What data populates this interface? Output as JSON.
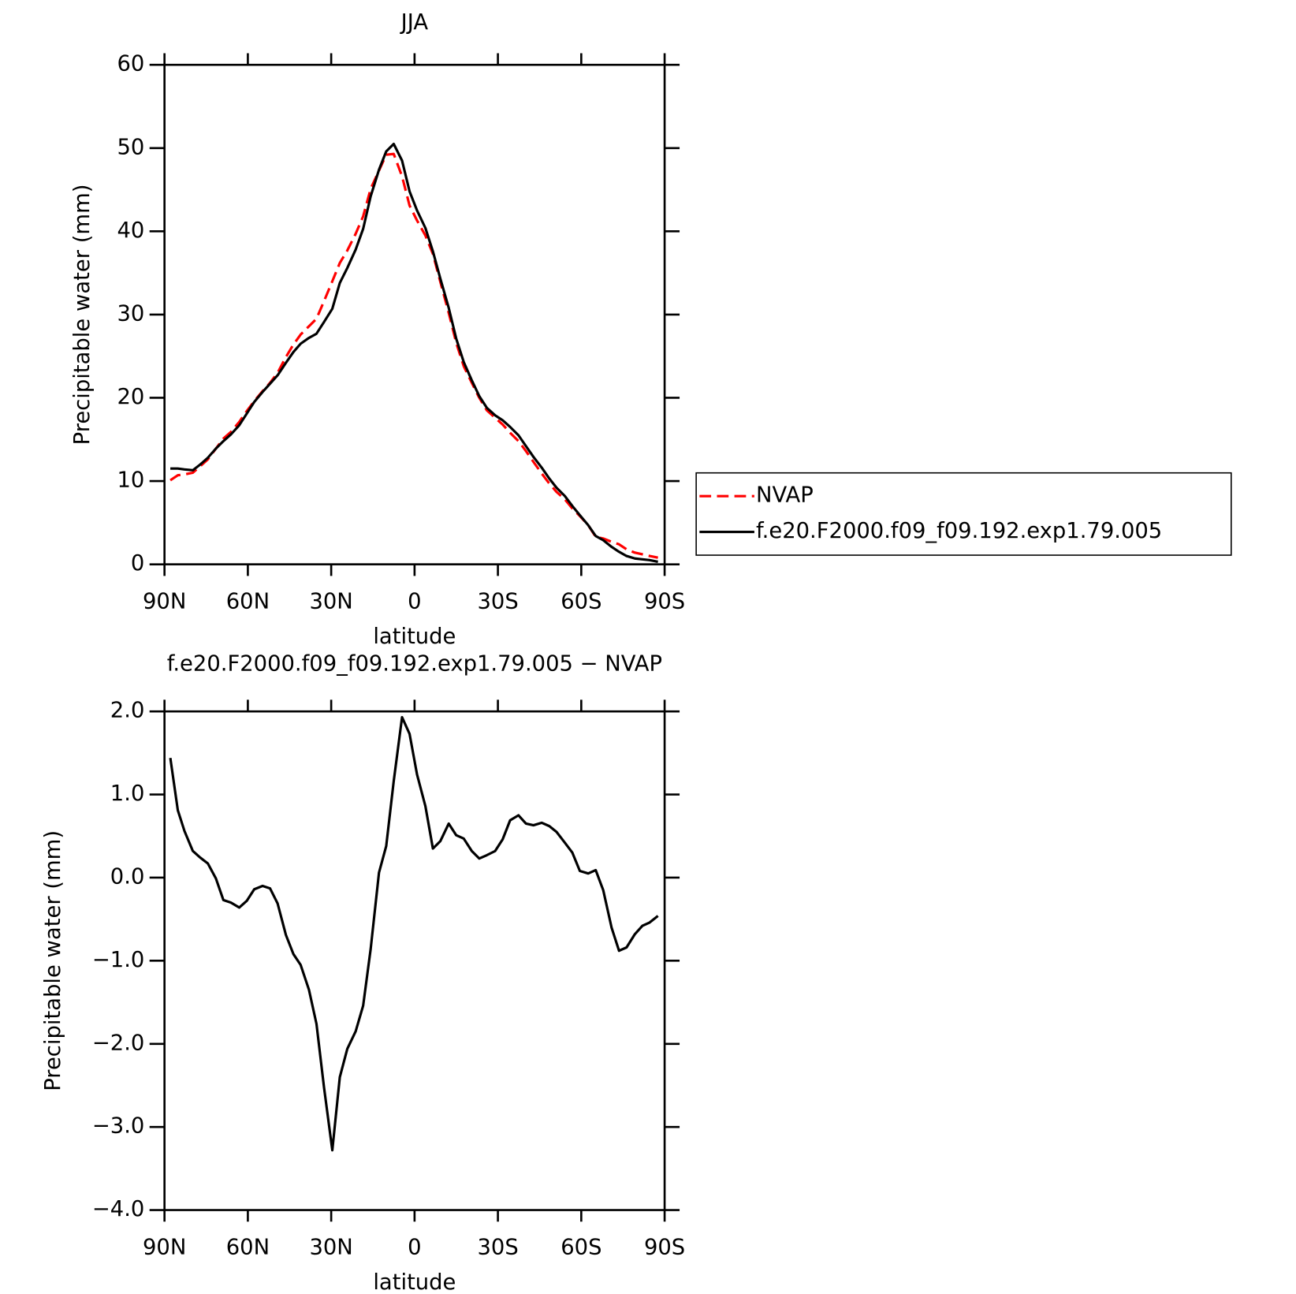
{
  "chart_data": [
    {
      "type": "line",
      "title": "JJA",
      "xlabel": "latitude",
      "ylabel": "Precipitable water (mm)",
      "x": [
        87.9,
        85.2,
        82.8,
        79.8,
        77.1,
        74.4,
        71.5,
        68.8,
        66.1,
        63.1,
        60.4,
        57.7,
        54.7,
        52.0,
        49.3,
        46.3,
        43.6,
        41.0,
        38.0,
        35.3,
        32.6,
        29.6,
        26.9,
        24.2,
        21.2,
        18.5,
        15.8,
        12.8,
        10.2,
        7.5,
        4.5,
        1.8,
        -0.9,
        -3.9,
        -6.6,
        -9.3,
        -12.3,
        -15.0,
        -17.7,
        -20.6,
        -23.3,
        -26.0,
        -29.0,
        -31.7,
        -34.4,
        -37.4,
        -40.1,
        -42.8,
        -45.8,
        -48.5,
        -51.1,
        -54.1,
        -56.8,
        -59.5,
        -62.5,
        -65.2,
        -67.9,
        -70.9,
        -73.6,
        -76.3,
        -79.3,
        -82.0,
        -84.6,
        -87.6
      ],
      "series": [
        {
          "name": "NVAP",
          "color": "#ff0000",
          "style": "dashed",
          "values": [
            10.1,
            10.7,
            10.8,
            11.0,
            11.8,
            12.6,
            13.9,
            15.1,
            15.9,
            17.1,
            18.4,
            19.6,
            20.8,
            21.8,
            23.0,
            24.9,
            26.4,
            27.6,
            28.6,
            29.5,
            31.6,
            34.0,
            36.2,
            37.7,
            39.7,
            41.8,
            45.1,
            47.3,
            49.2,
            49.3,
            46.6,
            43.1,
            41.3,
            39.5,
            37.3,
            33.9,
            30.2,
            26.6,
            23.8,
            21.8,
            20.0,
            18.5,
            17.6,
            16.8,
            15.8,
            14.8,
            13.6,
            12.3,
            10.9,
            9.7,
            8.7,
            7.8,
            6.7,
            5.8,
            4.7,
            3.3,
            3.1,
            2.7,
            2.4,
            1.8,
            1.4,
            1.2,
            1.0,
            0.8
          ]
        },
        {
          "name": "f.e20.F2000.f09_f09.192.exp1.79.005",
          "color": "#000000",
          "style": "solid",
          "values": [
            11.5,
            11.5,
            11.4,
            11.3,
            12.0,
            12.8,
            13.9,
            14.8,
            15.6,
            16.7,
            18.1,
            19.5,
            20.7,
            21.7,
            22.7,
            24.2,
            25.5,
            26.5,
            27.2,
            27.7,
            29.1,
            30.7,
            33.8,
            35.6,
            37.8,
            40.3,
            44.2,
            47.4,
            49.6,
            50.5,
            48.5,
            44.8,
            42.5,
            40.4,
            37.6,
            34.3,
            30.8,
            27.1,
            24.3,
            22.1,
            20.2,
            18.8,
            17.9,
            17.3,
            16.5,
            15.5,
            14.2,
            12.9,
            11.6,
            10.3,
            9.2,
            8.2,
            7.0,
            5.9,
            4.7,
            3.4,
            2.9,
            2.1,
            1.5,
            1.0,
            0.7,
            0.6,
            0.5,
            0.3
          ]
        }
      ],
      "xlim": [
        90,
        -90
      ],
      "xticks": [
        {
          "value": 90,
          "label": "90N"
        },
        {
          "value": 60,
          "label": "60N"
        },
        {
          "value": 30,
          "label": "30N"
        },
        0,
        {
          "value": -30,
          "label": "30S"
        },
        {
          "value": -60,
          "label": "60S"
        },
        {
          "value": -90,
          "label": "90S"
        }
      ],
      "ylim": [
        0,
        60
      ],
      "yticks": [
        0,
        10,
        20,
        30,
        40,
        50,
        60
      ],
      "legend": "right"
    },
    {
      "type": "line",
      "title": "f.e20.F2000.f09_f09.192.exp1.79.005 − NVAP",
      "xlabel": "latitude",
      "ylabel": "Precipitable water (mm)",
      "x": [
        87.9,
        85.2,
        82.8,
        79.8,
        77.1,
        74.4,
        71.5,
        68.8,
        66.1,
        63.1,
        60.4,
        57.7,
        54.7,
        52.0,
        49.3,
        46.3,
        43.6,
        41.0,
        38.0,
        35.3,
        32.6,
        29.6,
        26.9,
        24.2,
        21.2,
        18.5,
        15.8,
        12.8,
        10.2,
        7.5,
        4.5,
        1.8,
        -0.9,
        -3.9,
        -6.6,
        -9.3,
        -12.3,
        -15.0,
        -17.7,
        -20.6,
        -23.3,
        -26.0,
        -29.0,
        -31.7,
        -34.4,
        -37.4,
        -40.1,
        -42.8,
        -45.8,
        -48.5,
        -51.1,
        -54.1,
        -56.8,
        -59.5,
        -62.5,
        -65.2,
        -67.9,
        -70.9,
        -73.6,
        -76.3,
        -79.3,
        -82.0,
        -84.6,
        -87.6
      ],
      "series": [
        {
          "color": "#000000",
          "style": "solid",
          "values": [
            1.44,
            0.81,
            0.56,
            0.32,
            0.24,
            0.17,
            -0.01,
            -0.27,
            -0.3,
            -0.36,
            -0.28,
            -0.14,
            -0.1,
            -0.13,
            -0.31,
            -0.69,
            -0.92,
            -1.05,
            -1.35,
            -1.76,
            -2.52,
            -3.28,
            -2.4,
            -2.06,
            -1.85,
            -1.54,
            -0.86,
            0.06,
            0.38,
            1.16,
            1.93,
            1.73,
            1.24,
            0.86,
            0.35,
            0.44,
            0.65,
            0.51,
            0.47,
            0.32,
            0.23,
            0.27,
            0.32,
            0.46,
            0.69,
            0.75,
            0.65,
            0.63,
            0.66,
            0.62,
            0.55,
            0.42,
            0.3,
            0.08,
            0.05,
            0.09,
            -0.15,
            -0.6,
            -0.88,
            -0.84,
            -0.68,
            -0.58,
            -0.54,
            -0.46
          ]
        }
      ],
      "xlim": [
        90,
        -90
      ],
      "xticks": [
        {
          "value": 90,
          "label": "90N"
        },
        {
          "value": 60,
          "label": "60N"
        },
        {
          "value": 30,
          "label": "30N"
        },
        0,
        {
          "value": -30,
          "label": "30S"
        },
        {
          "value": -60,
          "label": "60S"
        },
        {
          "value": -90,
          "label": "90S"
        }
      ],
      "ylim": [
        -4,
        2
      ],
      "yticks": [
        {
          "value": -4,
          "label": "−4.0"
        },
        {
          "value": -3,
          "label": "−3.0"
        },
        {
          "value": -2,
          "label": "−2.0"
        },
        {
          "value": -1,
          "label": "−1.0"
        },
        {
          "value": 0,
          "label": "0.0"
        },
        {
          "value": 1,
          "label": "1.0"
        },
        {
          "value": 2,
          "label": "2.0"
        }
      ]
    }
  ]
}
